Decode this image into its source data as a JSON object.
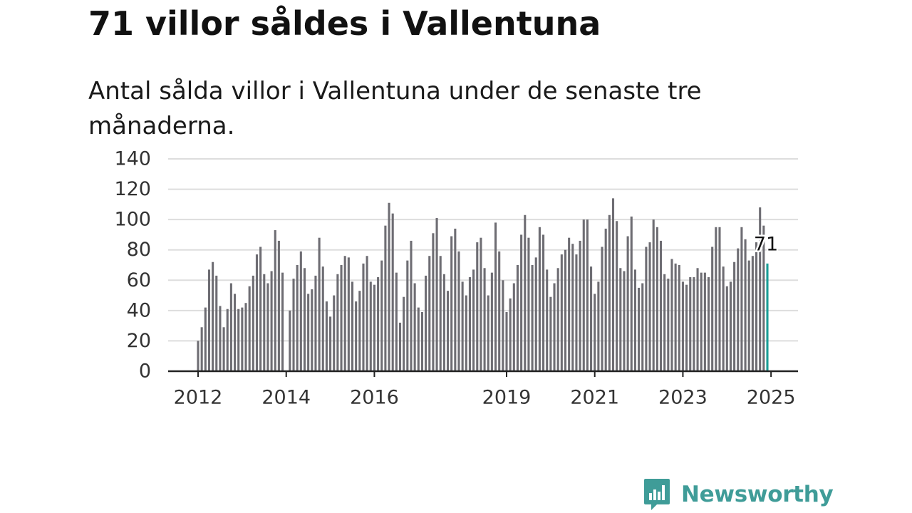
{
  "header": {
    "title": "71 villor såldes i Vallentuna",
    "subtitle": "Antal sålda villor i Vallentuna under de senaste tre månaderna."
  },
  "brand": {
    "name": "Newsworthy",
    "icon": "newsworthy-logo-icon",
    "color": "#3f9c98"
  },
  "chart_data": {
    "type": "bar",
    "x_start": "2012-01",
    "x_end": "2025-01",
    "x_ticks": [
      "2012",
      "2014",
      "2016",
      "2019",
      "2021",
      "2023",
      "2025"
    ],
    "y_ticks": [
      "0",
      "20",
      "40",
      "60",
      "80",
      "100",
      "120",
      "140"
    ],
    "ylim": [
      0,
      140
    ],
    "grid": true,
    "bar_color": "#6e6d73",
    "highlight_color": "#1a9e96",
    "highlight_label": "71",
    "values": [
      20,
      29,
      42,
      67,
      72,
      63,
      43,
      29,
      41,
      58,
      51,
      41,
      42,
      45,
      56,
      63,
      77,
      82,
      64,
      58,
      66,
      93,
      86,
      65,
      0,
      40,
      61,
      70,
      79,
      68,
      51,
      54,
      63,
      88,
      69,
      46,
      36,
      50,
      64,
      70,
      76,
      75,
      59,
      46,
      53,
      71,
      76,
      59,
      57,
      62,
      73,
      96,
      111,
      104,
      65,
      32,
      49,
      73,
      86,
      58,
      42,
      39,
      63,
      76,
      91,
      101,
      76,
      64,
      53,
      89,
      94,
      79,
      59,
      50,
      62,
      67,
      85,
      88,
      68,
      50,
      65,
      98,
      79,
      60,
      39,
      48,
      58,
      70,
      90,
      103,
      88,
      70,
      75,
      95,
      90,
      67,
      49,
      58,
      68,
      77,
      80,
      88,
      84,
      77,
      86,
      100,
      100,
      69,
      51,
      59,
      82,
      94,
      103,
      114,
      99,
      68,
      66,
      89,
      102,
      67,
      55,
      58,
      82,
      85,
      100,
      95,
      86,
      64,
      61,
      74,
      71,
      70,
      59,
      57,
      62,
      62,
      68,
      65,
      65,
      62,
      82,
      95,
      95,
      69,
      56,
      59,
      72,
      81,
      95,
      87,
      73,
      76,
      85,
      108,
      96,
      71
    ]
  }
}
